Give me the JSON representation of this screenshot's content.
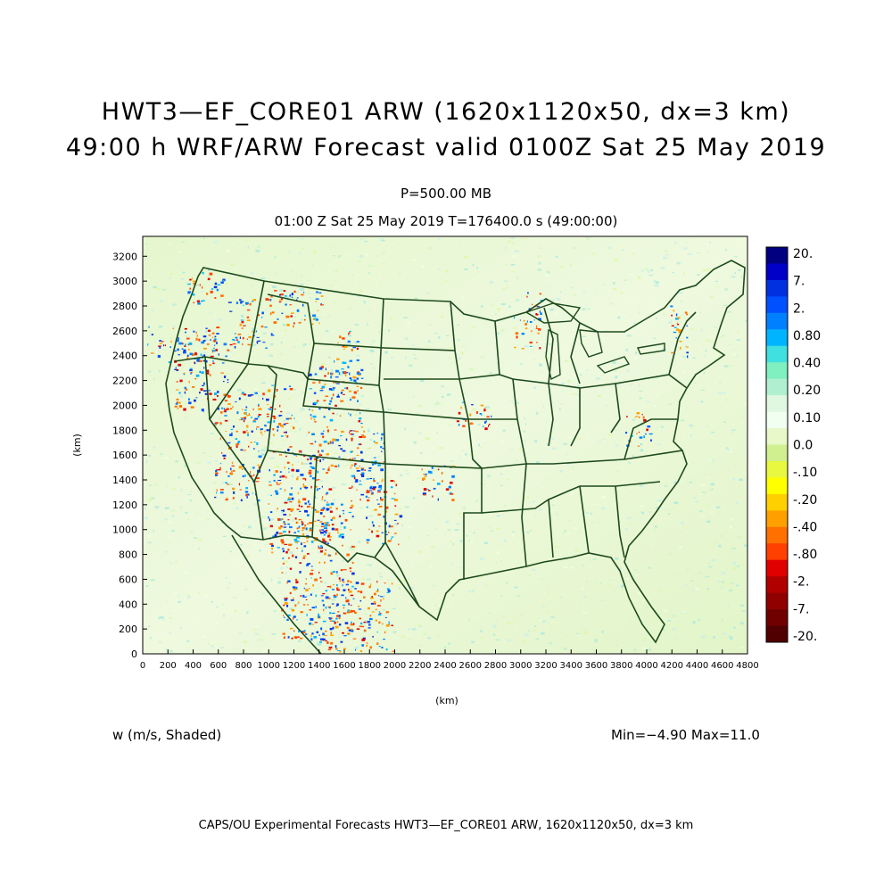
{
  "header": {
    "title_line1": "HWT3—EF_CORE01 ARW (1620x1120x50, dx=3 km)",
    "title_line2": "49:00 h WRF/ARW Forecast valid 0100Z Sat 25 May 2019",
    "level": "P=500.00 MB",
    "time_info": "01:00 Z Sat 25 May 2019    T=176400.0 s (49:00:00)"
  },
  "axes": {
    "x_label": "(km)",
    "y_label": "(km)",
    "x_ticks": [
      "0",
      "200",
      "400",
      "600",
      "800",
      "1000",
      "1200",
      "1400",
      "1600",
      "1800",
      "2000",
      "2200",
      "2400",
      "2600",
      "2800",
      "3000",
      "3200",
      "3400",
      "3600",
      "3800",
      "4000",
      "4200",
      "4400",
      "4600",
      "4800"
    ],
    "y_ticks": [
      "0",
      "200",
      "400",
      "600",
      "800",
      "1000",
      "1200",
      "1400",
      "1600",
      "1800",
      "2000",
      "2200",
      "2400",
      "2600",
      "2800",
      "3000",
      "3200"
    ]
  },
  "colorbar": {
    "labels": [
      "20.",
      "7.",
      "2.",
      "0.80",
      "0.40",
      "0.20",
      "0.10",
      "0.0",
      "-.10",
      "-.20",
      "-.40",
      "-.80",
      "-2.",
      "-7.",
      "-20."
    ],
    "colors": [
      "#000080",
      "#0000c8",
      "#0030e0",
      "#0050ff",
      "#0080ff",
      "#00b4ff",
      "#40e0e0",
      "#80f0c0",
      "#b0f0d0",
      "#e0f8e0",
      "#f0fff0",
      "#e8f8c8",
      "#d0f090",
      "#e8f840",
      "#ffff00",
      "#ffd000",
      "#ffa000",
      "#ff7000",
      "#ff4000",
      "#e00000",
      "#b00000",
      "#900000",
      "#700000",
      "#500000"
    ]
  },
  "field_label": "w (m/s, Shaded)",
  "stats": "Min=−4.90 Max=11.0",
  "footer": "CAPS/OU Experimental Forecasts  HWT3—EF_CORE01 ARW, 1620x1120x50, dx=3 km"
}
